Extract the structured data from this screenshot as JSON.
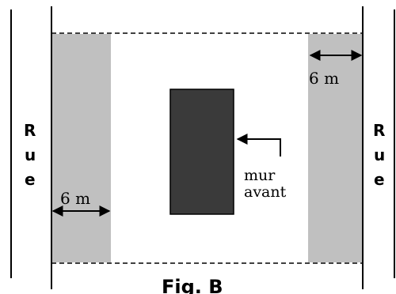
{
  "figure": {
    "caption": "Fig. B"
  },
  "streets": {
    "left": [
      "R",
      "u",
      "e"
    ],
    "right": [
      "R",
      "u",
      "e"
    ]
  },
  "setbacks": {
    "left_label": "6 m",
    "right_label": "6 m"
  },
  "front_wall": {
    "line1": "mur",
    "line2": "avant"
  },
  "colors": {
    "setback_fill": "#c0c0c0",
    "building_fill": "#3a3a3a",
    "line": "#000000"
  }
}
